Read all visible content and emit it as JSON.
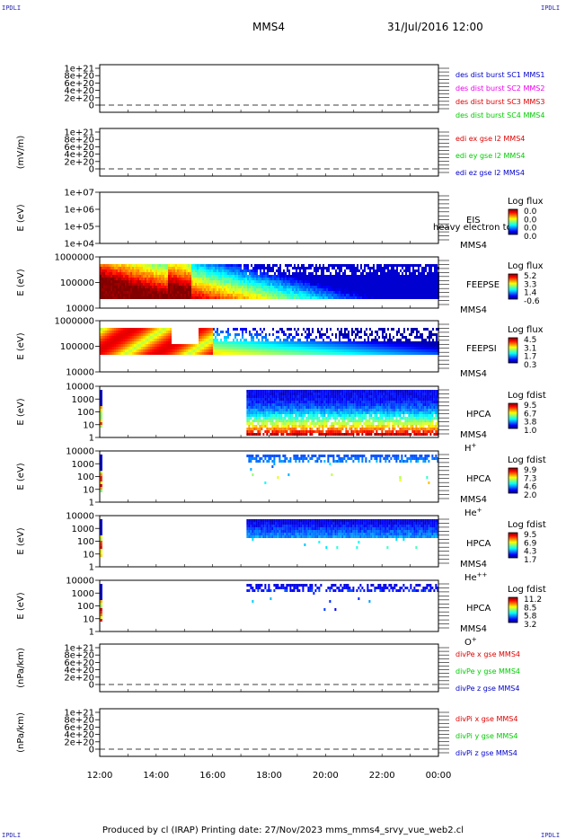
{
  "header": {
    "corner_left": "IPDLI",
    "corner_right": "IPDLI",
    "title": "MMS4",
    "datetime": "31/Jul/2016 12:00"
  },
  "footer": {
    "text": "Produced by cl (IRAP)   Printing date: 27/Nov/2023   mms_mms4_srvy_vue_web2.cl"
  },
  "colors": {
    "red": "#e00000",
    "magenta": "#ee00ee",
    "green": "#00cc00",
    "blue": "#0000cc",
    "dashed": "#000000"
  },
  "chart_data": {
    "type": "heatmap",
    "x_ticks": [
      "12:00",
      "14:00",
      "16:00",
      "18:00",
      "20:00",
      "22:00",
      "00:00"
    ],
    "x_range_hours": [
      12,
      24
    ],
    "panels": [
      {
        "kind": "line",
        "ylabel": "",
        "yticks": [
          "1e+21",
          "8e+20",
          "6e+20",
          "4e+20",
          "2e+20",
          "0"
        ],
        "legend": [
          {
            "text": "des dist burst SC1 MMS1",
            "color": "#0000cc"
          },
          {
            "text": "des dist burst SC2 MMS2",
            "color": "#ee00ee"
          },
          {
            "text": "des dist burst SC3 MMS3",
            "color": "#e00000"
          },
          {
            "text": "des dist burst SC4 MMS4",
            "color": "#00cc00"
          }
        ]
      },
      {
        "kind": "line",
        "ylabel": "(mV/m)",
        "yticks": [
          "1e+21",
          "8e+20",
          "6e+20",
          "4e+20",
          "2e+20",
          "0"
        ],
        "legend": [
          {
            "text": "edi ex gse l2 MMS4",
            "color": "#e00000"
          },
          {
            "text": "edi ey gse l2 MMS4",
            "color": "#00cc00"
          },
          {
            "text": "edi ez gse l2 MMS4",
            "color": "#0000cc"
          }
        ]
      },
      {
        "kind": "spec",
        "ylabel": "E (eV)",
        "yticks": [
          "1e+07",
          "1e+06",
          "1e+05",
          "1e+04"
        ],
        "label1": "EIS",
        "label2": "heavy electron tof",
        "label3": "MMS4",
        "cb_title": "Log flux",
        "cb_ticks": [
          "0.0",
          "0.0",
          "0.0",
          "0.0"
        ],
        "empty": true
      },
      {
        "kind": "spec",
        "ylabel": "E (eV)",
        "yticks": [
          "1000000",
          "100000",
          "10000"
        ],
        "label1": "FEEPSE",
        "label3": "MMS4",
        "cb_title": "Log flux",
        "cb_ticks": [
          "5.2",
          "3.3",
          "1.4",
          "-0.6"
        ]
      },
      {
        "kind": "spec",
        "ylabel": "E (eV)",
        "yticks": [
          "1000000",
          "100000",
          "10000"
        ],
        "label1": "FEEPSI",
        "label3": "MMS4",
        "cb_title": "Log flux",
        "cb_ticks": [
          "4.5",
          "3.1",
          "1.7",
          "0.3"
        ]
      },
      {
        "kind": "spec",
        "ylabel": "E (eV)",
        "yticks": [
          "10000",
          "1000",
          "100",
          "10",
          "1"
        ],
        "label1": "HPCA",
        "label3": "MMS4",
        "species": "H",
        "charge": "+",
        "cb_title": "Log fdist",
        "cb_ticks": [
          "9.5",
          "6.7",
          "3.8",
          "1.0"
        ]
      },
      {
        "kind": "spec",
        "ylabel": "E (eV)",
        "yticks": [
          "10000",
          "1000",
          "100",
          "10",
          "1"
        ],
        "label1": "HPCA",
        "label3": "MMS4",
        "species": "He",
        "charge": "+",
        "cb_title": "Log fdist",
        "cb_ticks": [
          "9.9",
          "7.3",
          "4.6",
          "2.0"
        ]
      },
      {
        "kind": "spec",
        "ylabel": "E (eV)",
        "yticks": [
          "10000",
          "1000",
          "100",
          "10",
          "1"
        ],
        "label1": "HPCA",
        "label3": "MMS4",
        "species": "He",
        "charge": "++",
        "cb_title": "Log fdist",
        "cb_ticks": [
          "9.5",
          "6.9",
          "4.3",
          "1.7"
        ]
      },
      {
        "kind": "spec",
        "ylabel": "E (eV)",
        "yticks": [
          "10000",
          "1000",
          "100",
          "10",
          "1"
        ],
        "label1": "HPCA",
        "label3": "MMS4",
        "species": "O",
        "charge": "+",
        "cb_title": "Log fdist",
        "cb_ticks": [
          "11.2",
          "8.5",
          "5.8",
          "3.2"
        ]
      },
      {
        "kind": "line",
        "ylabel": "(nPa/km)",
        "yticks": [
          "1e+21",
          "8e+20",
          "6e+20",
          "4e+20",
          "2e+20",
          "0"
        ],
        "legend": [
          {
            "text": "divPe x gse MMS4",
            "color": "#e00000"
          },
          {
            "text": "divPe y gse MMS4",
            "color": "#00cc00"
          },
          {
            "text": "divPe z gse MMS4",
            "color": "#0000cc"
          }
        ]
      },
      {
        "kind": "line",
        "ylabel": "(nPa/km)",
        "yticks": [
          "1e+21",
          "8e+20",
          "6e+20",
          "4e+20",
          "2e+20",
          "0"
        ],
        "legend": [
          {
            "text": "divPi x gse MMS4",
            "color": "#e00000"
          },
          {
            "text": "divPi y gse MMS4",
            "color": "#00cc00"
          },
          {
            "text": "divPi z gse MMS4",
            "color": "#0000cc"
          }
        ]
      }
    ]
  }
}
